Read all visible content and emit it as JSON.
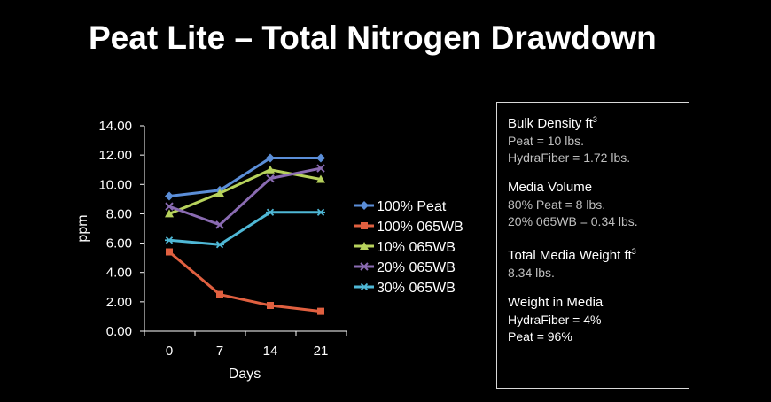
{
  "title": "Peat Lite – Total Nitrogen Drawdown",
  "chart_data": {
    "type": "line",
    "x": [
      0,
      7,
      14,
      21
    ],
    "categories": [
      "0",
      "7",
      "14",
      "21"
    ],
    "xlabel": "Days",
    "ylabel": "ppm",
    "ylim": [
      0,
      14
    ],
    "yticks": [
      "0.00",
      "2.00",
      "4.00",
      "6.00",
      "8.00",
      "10.00",
      "12.00",
      "14.00"
    ],
    "grid": false,
    "legend": "right",
    "series": [
      {
        "name": "100% Peat",
        "values": [
          9.2,
          9.6,
          11.8,
          11.8
        ],
        "color": "#5b8ed8",
        "marker": "diamond"
      },
      {
        "name": "100% 065WB",
        "values": [
          5.4,
          2.5,
          1.75,
          1.35
        ],
        "color": "#e06040",
        "marker": "square"
      },
      {
        "name": "10% 065WB",
        "values": [
          8.0,
          9.4,
          11.0,
          10.35
        ],
        "color": "#b7d25c",
        "marker": "triangle"
      },
      {
        "name": "20% 065WB",
        "values": [
          8.5,
          7.25,
          10.4,
          11.1
        ],
        "color": "#8a6bb2",
        "marker": "x"
      },
      {
        "name": "30% 065WB",
        "values": [
          6.2,
          5.9,
          8.1,
          8.1
        ],
        "color": "#4fb8d6",
        "marker": "star"
      }
    ]
  },
  "info": {
    "bulk_density": {
      "heading": "Bulk Density ft",
      "sup": "3",
      "lines": [
        "Peat = 10 lbs.",
        "HydraFiber = 1.72 lbs."
      ]
    },
    "media_volume": {
      "heading": "Media Volume",
      "lines": [
        "80% Peat = 8 lbs.",
        "20% 065WB = 0.34 lbs."
      ]
    },
    "total_weight": {
      "heading": "Total Media Weight ft",
      "sup": "3",
      "lines": [
        "8.34 lbs."
      ]
    },
    "weight_in_media": {
      "heading": "Weight in Media",
      "lines": [
        "HydraFiber = 4%",
        "Peat = 96%"
      ]
    }
  }
}
